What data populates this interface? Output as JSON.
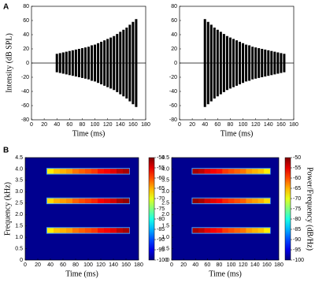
{
  "panels": [
    "A",
    "B"
  ],
  "chart_data": [
    {
      "type": "waveform",
      "color": "#000000",
      "x": [
        40,
        45,
        50,
        55,
        60,
        65,
        70,
        75,
        80,
        85,
        90,
        95,
        100,
        105,
        110,
        115,
        120,
        125,
        130,
        135,
        140,
        145,
        150,
        155,
        160,
        165
      ],
      "values": [
        13,
        14,
        15,
        16,
        17,
        18,
        19,
        20,
        21,
        22,
        23,
        25,
        26,
        28,
        30,
        32,
        34,
        36,
        38,
        41,
        44,
        47,
        50,
        54,
        58,
        62
      ],
      "xlim": [
        0,
        180
      ],
      "xticks": [
        0,
        20,
        40,
        60,
        80,
        100,
        120,
        140,
        160,
        180
      ],
      "ylim": [
        -80,
        80
      ],
      "yticks": [
        -80,
        -60,
        -40,
        -20,
        0,
        20,
        40,
        60,
        80
      ],
      "xlabel": "Time (ms)",
      "ylabel": "Intensity (dB SPL)"
    },
    {
      "type": "waveform",
      "color": "#000000",
      "x": [
        40,
        45,
        50,
        55,
        60,
        65,
        70,
        75,
        80,
        85,
        90,
        95,
        100,
        105,
        110,
        115,
        120,
        125,
        130,
        135,
        140,
        145,
        150,
        155,
        160,
        165
      ],
      "values": [
        62,
        58,
        54,
        50,
        47,
        44,
        41,
        38,
        36,
        34,
        32,
        30,
        28,
        26,
        25,
        23,
        22,
        21,
        20,
        19,
        18,
        17,
        16,
        15,
        14,
        13
      ],
      "xlim": [
        0,
        180
      ],
      "xticks": [
        0,
        20,
        40,
        60,
        80,
        100,
        120,
        140,
        160,
        180
      ],
      "ylim": [
        -80,
        80
      ],
      "yticks": [
        -80,
        -60,
        -40,
        -20,
        0,
        20,
        40,
        60,
        80
      ],
      "xlabel": "Time (ms)"
    },
    {
      "type": "spectrogram",
      "colormap": "jet",
      "background_color": "#00008f",
      "x": [
        40,
        50,
        60,
        70,
        80,
        90,
        100,
        110,
        120,
        130,
        140,
        150,
        160
      ],
      "y": [
        1.3,
        2.6,
        3.9
      ],
      "values": [
        [
          -68,
          -66,
          -65,
          -64,
          -62,
          -61,
          -60,
          -59,
          -57,
          -56,
          -55,
          -53,
          -52
        ],
        [
          -67,
          -65,
          -64,
          -63,
          -61,
          -60,
          -59,
          -58,
          -56,
          -55,
          -54,
          -52,
          -51
        ],
        [
          -68,
          -66,
          -65,
          -64,
          -62,
          -61,
          -60,
          -59,
          -57,
          -56,
          -55,
          -53,
          -52
        ]
      ],
      "xlim": [
        0,
        180
      ],
      "xticks": [
        0,
        20,
        40,
        60,
        80,
        100,
        120,
        140,
        160,
        180
      ],
      "ylim": [
        0,
        4.5
      ],
      "yticks": [
        0,
        0.5,
        {
          "value": 1,
          "label": "1.0"
        },
        1.5,
        {
          "value": 2,
          "label": "2.0"
        },
        2.5,
        {
          "value": 3,
          "label": "3.0"
        },
        3.5,
        {
          "value": 4,
          "label": "4.0"
        },
        4.5
      ],
      "clim": [
        -100,
        -50
      ],
      "cticks": [
        -100,
        -95,
        -90,
        -85,
        -80,
        -75,
        -70,
        -65,
        -60,
        -55,
        -50
      ],
      "xlabel": "Time (ms)",
      "ylabel": "Frequency (kHz)"
    },
    {
      "type": "spectrogram",
      "colormap": "jet",
      "background_color": "#00008f",
      "x": [
        40,
        50,
        60,
        70,
        80,
        90,
        100,
        110,
        120,
        130,
        140,
        150,
        160
      ],
      "y": [
        1.3,
        2.6,
        3.9
      ],
      "values": [
        [
          -52,
          -53,
          -55,
          -56,
          -57,
          -59,
          -60,
          -61,
          -62,
          -64,
          -65,
          -66,
          -68
        ],
        [
          -51,
          -52,
          -54,
          -55,
          -56,
          -58,
          -59,
          -60,
          -61,
          -63,
          -64,
          -65,
          -67
        ],
        [
          -52,
          -53,
          -55,
          -56,
          -57,
          -59,
          -60,
          -61,
          -62,
          -64,
          -65,
          -66,
          -68
        ]
      ],
      "xlim": [
        0,
        180
      ],
      "xticks": [
        0,
        20,
        40,
        60,
        80,
        100,
        120,
        140,
        160,
        180
      ],
      "ylim": [
        0,
        4.5
      ],
      "yticks": [
        0,
        0.5,
        {
          "value": 1,
          "label": "1.0"
        },
        1.5,
        {
          "value": 2,
          "label": "2.0"
        },
        2.5,
        {
          "value": 3,
          "label": "3.0"
        },
        3.5,
        {
          "value": 4,
          "label": "4.0"
        },
        4.5
      ],
      "clim": [
        -100,
        -50
      ],
      "cticks": [
        -100,
        -95,
        -90,
        -85,
        -80,
        -75,
        -70,
        -65,
        -60,
        -55,
        -50
      ],
      "xlabel": "Time (ms)",
      "clabel": "Power/Frequency (dB/Hz)"
    }
  ]
}
